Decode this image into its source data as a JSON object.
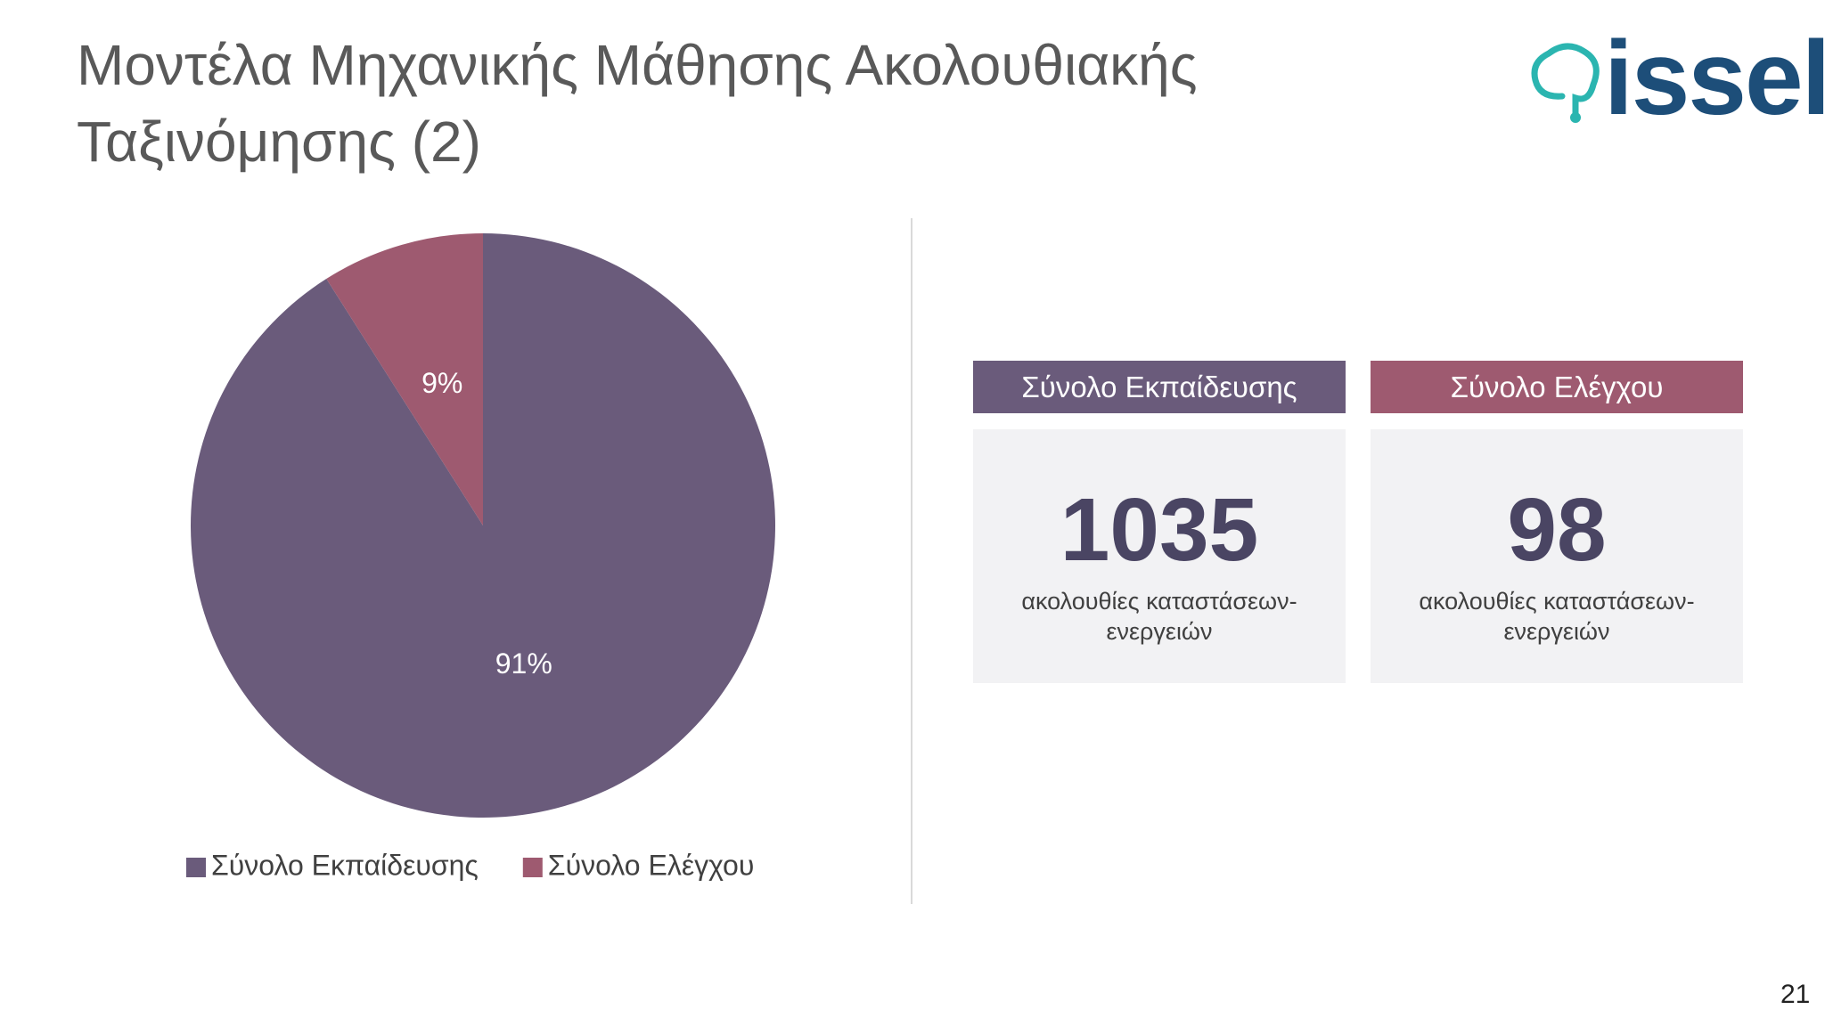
{
  "title": "Μοντέλα Μηχανικής Μάθησης Ακολουθιακής Ταξινόμησης (2)",
  "logo": "issel",
  "chart_data": {
    "type": "pie",
    "categories": [
      "Σύνολο Εκπαίδευσης",
      "Σύνολο Ελέγχου"
    ],
    "values": [
      91,
      9
    ],
    "value_labels": [
      "91%",
      "9%"
    ],
    "colors": [
      "#6a5b7b",
      "#9e5a70"
    ],
    "legend": "bottom"
  },
  "cards": [
    {
      "header": "Σύνολο Εκπαίδευσης",
      "value": 1035,
      "description": "ακολουθίες καταστάσεων-ενεργειών"
    },
    {
      "header": "Σύνολο Ελέγχου",
      "value": 98,
      "description": "ακολουθίες καταστάσεων-ενεργειών"
    }
  ],
  "page_number": "21"
}
